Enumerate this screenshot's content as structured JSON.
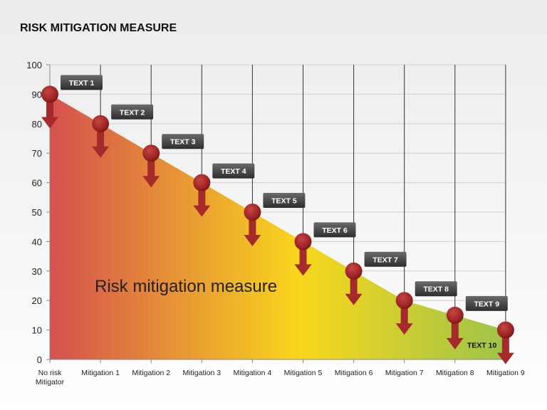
{
  "title": "RISK MITIGATION MEASURE",
  "chart_data": {
    "type": "area",
    "title": "RISK MITIGATION MEASURE",
    "annotation": "Risk mitigation measure",
    "categories": [
      "No risk Mitigator",
      "Mitigation 1",
      "Mitigation 2",
      "Mitigation 3",
      "Mitigation 4",
      "Mitigation 5",
      "Mitigation 6",
      "Mitigation 7",
      "Mitigation 8",
      "Mitigation 9"
    ],
    "values": [
      90,
      80,
      70,
      60,
      50,
      40,
      30,
      20,
      15,
      10
    ],
    "point_labels": [
      "TEXT 1",
      "TEXT 2",
      "TEXT 3",
      "TEXT 4",
      "TEXT 5",
      "TEXT 6",
      "TEXT 7",
      "TEXT 8",
      "TEXT 9",
      "TEXT 10"
    ],
    "ylim": [
      0,
      100
    ],
    "yticks": [
      0,
      10,
      20,
      30,
      40,
      50,
      60,
      70,
      80,
      90,
      100
    ],
    "grid": true,
    "colors": {
      "start": "#d4504f",
      "mid": "#f9d71c",
      "end": "#9dc44a",
      "marker": "#a52a2a"
    }
  }
}
